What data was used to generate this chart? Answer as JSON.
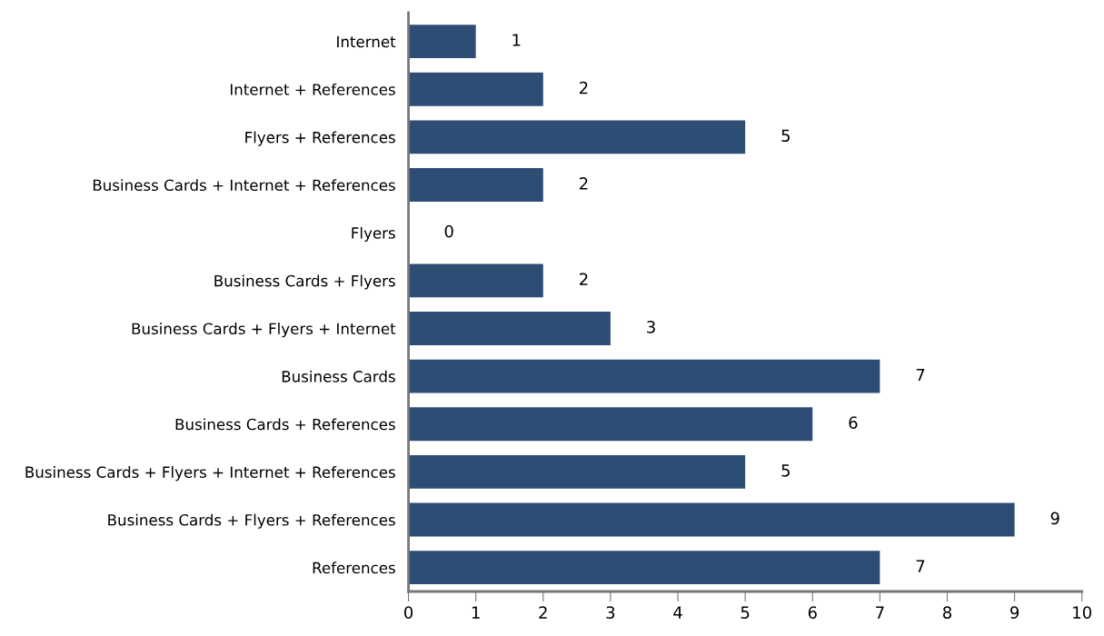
{
  "chart_data": {
    "type": "bar",
    "orientation": "horizontal",
    "categories": [
      "Internet",
      "Internet + References",
      "Flyers + References",
      "Business Cards + Internet + References",
      "Flyers",
      "Business Cards + Flyers",
      "Business Cards + Flyers + Internet",
      "Business Cards",
      "Business Cards + References",
      "Business Cards + Flyers + Internet + References",
      "Business Cards + Flyers + References",
      "References"
    ],
    "values": [
      1,
      2,
      5,
      2,
      0,
      2,
      3,
      7,
      6,
      5,
      9,
      7
    ],
    "value_labels": [
      "1",
      "2",
      "5",
      "2",
      "0",
      "2",
      "3",
      "7",
      "6",
      "5",
      "9",
      "7"
    ],
    "color": "#2e4d74",
    "xlim": [
      0,
      10
    ],
    "xticks": [
      0,
      1,
      2,
      3,
      4,
      5,
      6,
      7,
      8,
      9,
      10
    ],
    "grid": false,
    "legend": false
  }
}
